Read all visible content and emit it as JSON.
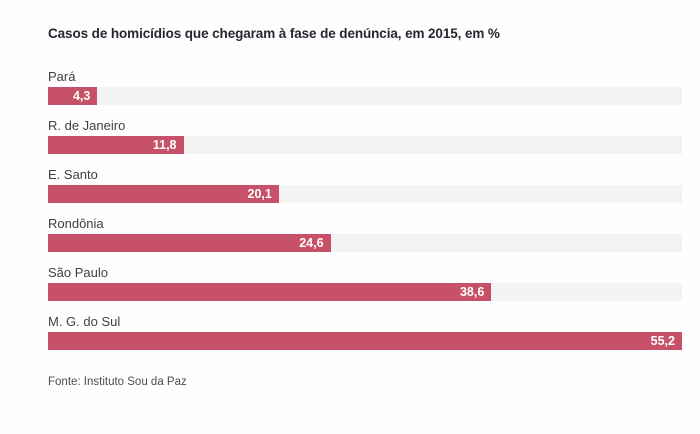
{
  "colors": {
    "background": "#fefefe",
    "bar": "#c75168",
    "track": "#f4f3f3",
    "title_text": "#262730",
    "label_text": "#3f3f3f",
    "value_text": "#ffffff",
    "footer_text": "#4d4d4d"
  },
  "header": {
    "title": "Casos de homicídios que chegaram à fase de denúncia, em 2015, em %"
  },
  "footer": {
    "source": "Fonte: Instituto Sou da Paz"
  },
  "chart_data": {
    "type": "bar",
    "orientation": "horizontal",
    "title": "Casos de homicídios que chegaram à fase de denúncia, em 2015, em %",
    "categories": [
      "Pará",
      "R. de Janeiro",
      "E. Santo",
      "Rondônia",
      "São Paulo",
      "M. G. do Sul"
    ],
    "values": [
      4.3,
      11.8,
      20.1,
      24.6,
      38.6,
      55.2
    ],
    "value_labels": [
      "4,3",
      "11,8",
      "20,1",
      "24,6",
      "38,6",
      "55,2"
    ],
    "xlabel": "",
    "ylabel": "",
    "xlim": [
      0,
      55.2
    ],
    "grid": false,
    "legend": false,
    "value_label_position": "inside-right",
    "source": "Fonte: Instituto Sou da Paz"
  }
}
